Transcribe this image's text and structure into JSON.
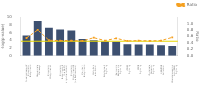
{
  "chart_data": {
    "type": "bar",
    "categories": [
      "Superpathway of\nCholesterol\nBiosynthesis",
      "Mevalonate\nPathway I",
      "Cholesterol\nBiosynthesis I",
      "Cholesterol\nBiosynthesis II\n(via 24,25-\ndihydrolanosterol)",
      "Cholesterol\nBiosynthesis III\n(via Desmosterol)",
      "Coumarin\nBiosynthesis",
      "Fatty Acid\na-oxidation",
      "Granzyme A\nSignaling",
      "Xenobiotic\nMetabolism\nSignaling",
      "CDK5\nSignaling",
      "PPAR\nSignaling",
      "Glutamate\nReceptor\nSignaling",
      "LXR/RXR\nActivation",
      "Docosahexaenoic\nAcid (DHA)\nSignaling"
    ],
    "series": [
      {
        "type": "bar",
        "color": "#3d5070",
        "values": [
          5.2,
          9.0,
          7.2,
          6.8,
          6.5,
          4.3,
          4.0,
          3.7,
          3.6,
          3.0,
          2.9,
          2.9,
          2.7,
          2.5
        ]
      },
      {
        "name": "Ratio",
        "type": "line",
        "axis": "y2",
        "color": "#f5a020",
        "line_style": "dashed",
        "marker": "square",
        "values": [
          0.55,
          0.8,
          0.48,
          0.47,
          0.47,
          0.46,
          0.56,
          0.47,
          0.54,
          0.46,
          0.47,
          0.46,
          0.47,
          0.57
        ]
      }
    ],
    "threshold": {
      "value": 0.45,
      "color": "#e8d800",
      "axis": "y2"
    },
    "ylabel": "-log(p-value)",
    "y2label": "Ratio",
    "ylim": [
      0,
      10
    ],
    "yticks": [
      0,
      2,
      4,
      6,
      8,
      10
    ],
    "y2lim": [
      0.0,
      1.2
    ],
    "y2ticks": [
      {
        "value": 0.0,
        "label": "0.0"
      },
      0.2,
      0.4,
      0.6,
      0.8,
      {
        "value": 1.0,
        "label": "1.0"
      }
    ],
    "grid": false,
    "legend": "upper right"
  }
}
